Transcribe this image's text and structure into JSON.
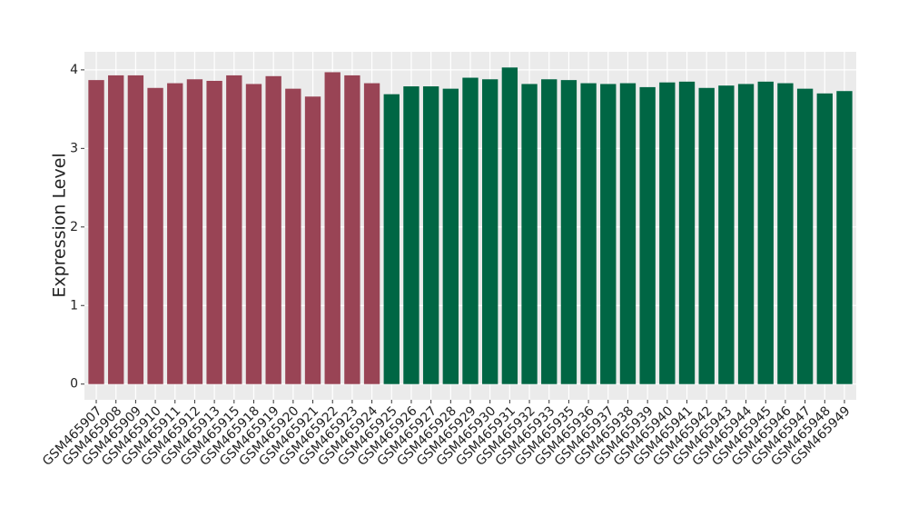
{
  "chart_data": {
    "type": "bar",
    "y_label": "Expression Level",
    "categories": [
      "GSM465907",
      "GSM465908",
      "GSM465909",
      "GSM465910",
      "GSM465911",
      "GSM465912",
      "GSM465913",
      "GSM465915",
      "GSM465918",
      "GSM465919",
      "GSM465920",
      "GSM465921",
      "GSM465922",
      "GSM465923",
      "GSM465924",
      "GSM465925",
      "GSM465926",
      "GSM465927",
      "GSM465928",
      "GSM465929",
      "GSM465930",
      "GSM465931",
      "GSM465932",
      "GSM465933",
      "GSM465935",
      "GSM465936",
      "GSM465937",
      "GSM465938",
      "GSM465939",
      "GSM465940",
      "GSM465941",
      "GSM465942",
      "GSM465943",
      "GSM465944",
      "GSM465945",
      "GSM465946",
      "GSM465947",
      "GSM465948",
      "GSM465949"
    ],
    "values": [
      3.87,
      3.93,
      3.93,
      3.77,
      3.83,
      3.88,
      3.86,
      3.93,
      3.82,
      3.92,
      3.76,
      3.66,
      3.97,
      3.93,
      3.83,
      3.69,
      3.79,
      3.79,
      3.76,
      3.9,
      3.88,
      4.03,
      3.82,
      3.88,
      3.87,
      3.83,
      3.82,
      3.83,
      3.78,
      3.84,
      3.85,
      3.77,
      3.8,
      3.82,
      3.85,
      3.83,
      3.76,
      3.7,
      3.73
    ],
    "colors": [
      "#994455",
      "#994455",
      "#994455",
      "#994455",
      "#994455",
      "#994455",
      "#994455",
      "#994455",
      "#994455",
      "#994455",
      "#994455",
      "#994455",
      "#994455",
      "#994455",
      "#994455",
      "#006644",
      "#006644",
      "#006644",
      "#006644",
      "#006644",
      "#006644",
      "#006644",
      "#006644",
      "#006644",
      "#006644",
      "#006644",
      "#006644",
      "#006644",
      "#006644",
      "#006644",
      "#006644",
      "#006644",
      "#006644",
      "#006644",
      "#006644",
      "#006644",
      "#006644",
      "#006644",
      "#006644"
    ],
    "ylim": [
      -0.2,
      4.23
    ],
    "yticks": [
      0,
      1,
      2,
      3,
      4
    ],
    "grid": true
  }
}
